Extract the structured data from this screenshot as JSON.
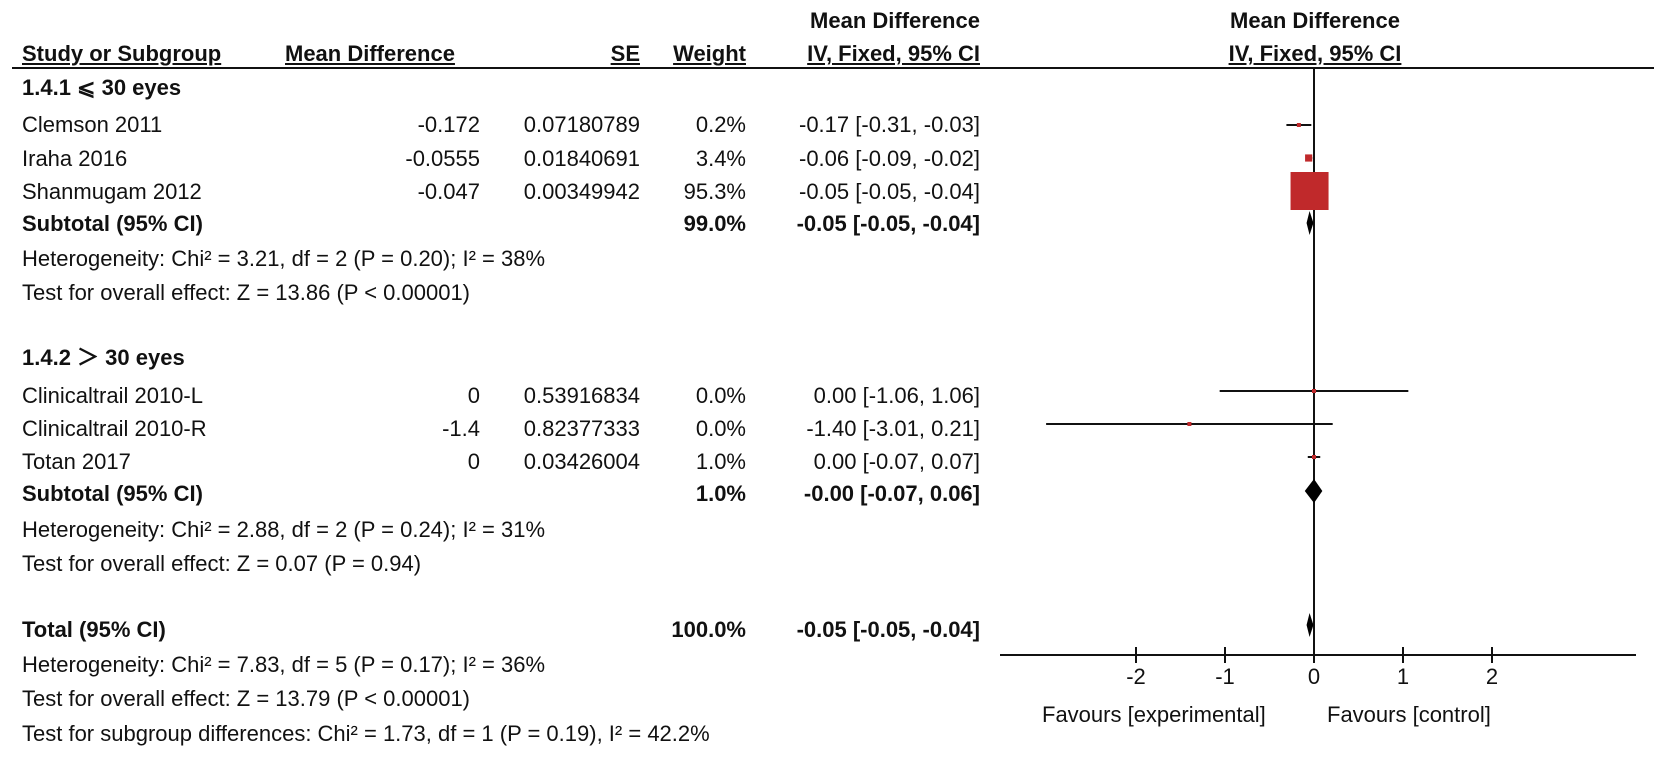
{
  "header": {
    "study": "Study or Subgroup",
    "md": "Mean Difference",
    "se": "SE",
    "weight": "Weight",
    "ci_line1": "Mean Difference",
    "ci_line2": "IV, Fixed, 95% CI",
    "plot_line1": "Mean Difference",
    "plot_line2": "IV, Fixed, 95% CI"
  },
  "groups": [
    {
      "title": "1.4.1 ⩽ 30 eyes",
      "studies": [
        {
          "name": "Clemson 2011",
          "md": "-0.172",
          "se": "0.07180789",
          "weight": "0.2%",
          "ci": "-0.17 [-0.31, -0.03]"
        },
        {
          "name": "Iraha 2016",
          "md": "-0.0555",
          "se": "0.01840691",
          "weight": "3.4%",
          "ci": "-0.06 [-0.09, -0.02]"
        },
        {
          "name": "Shanmugam 2012",
          "md": "-0.047",
          "se": "0.00349942",
          "weight": "95.3%",
          "ci": "-0.05 [-0.05, -0.04]"
        }
      ],
      "subtotal": {
        "label": "Subtotal (95% CI)",
        "weight": "99.0%",
        "ci": "-0.05 [-0.05, -0.04]"
      },
      "heterogeneity": "Heterogeneity: Chi² = 3.21, df = 2 (P = 0.20); I² = 38%",
      "overall": "Test for overall effect: Z = 13.86 (P < 0.00001)"
    },
    {
      "title": "1.4.2 ＞ 30 eyes",
      "studies": [
        {
          "name": "Clinicaltrail 2010-L",
          "md": "0",
          "se": "0.53916834",
          "weight": "0.0%",
          "ci": "0.00 [-1.06, 1.06]"
        },
        {
          "name": "Clinicaltrail 2010-R",
          "md": "-1.4",
          "se": "0.82377333",
          "weight": "0.0%",
          "ci": "-1.40 [-3.01, 0.21]"
        },
        {
          "name": "Totan 2017",
          "md": "0",
          "se": "0.03426004",
          "weight": "1.0%",
          "ci": "0.00 [-0.07, 0.07]"
        }
      ],
      "subtotal": {
        "label": "Subtotal (95% CI)",
        "weight": "1.0%",
        "ci": "-0.00 [-0.07, 0.06]"
      },
      "heterogeneity": "Heterogeneity: Chi² = 2.88, df = 2 (P = 0.24); I² = 31%",
      "overall": "Test for overall effect: Z = 0.07 (P = 0.94)"
    }
  ],
  "total": {
    "label": "Total (95% CI)",
    "weight": "100.0%",
    "ci": "-0.05 [-0.05, -0.04]",
    "heterogeneity": "Heterogeneity: Chi² = 7.83, df = 5 (P = 0.17); I² = 36%",
    "overall": "Test for overall effect: Z = 13.79 (P < 0.00001)",
    "subgroup": "Test for subgroup differences: Chi² = 1.73, df = 1 (P = 0.19), I² = 42.2%"
  },
  "footer": {
    "favours_left": "Favours [experimental]",
    "favours_right": "Favours [control]"
  },
  "colors": {
    "study_marker": "#c0292b",
    "diamond": "#000000",
    "line": "#111111"
  },
  "chart_data": {
    "type": "forest",
    "xlim": [
      -3.5,
      3.5
    ],
    "ticks": [
      -2,
      -1,
      0,
      1,
      2
    ],
    "tick_labels": [
      "-2",
      "-1",
      "0",
      "1",
      "2"
    ],
    "studies": [
      {
        "name": "Clemson 2011",
        "md": -0.17,
        "lo": -0.31,
        "hi": -0.03,
        "weight": 0.2
      },
      {
        "name": "Iraha 2016",
        "md": -0.06,
        "lo": -0.09,
        "hi": -0.02,
        "weight": 3.4
      },
      {
        "name": "Shanmugam 2012",
        "md": -0.05,
        "lo": -0.05,
        "hi": -0.04,
        "weight": 95.3
      },
      {
        "name": "Clinicaltrail 2010-L",
        "md": 0.0,
        "lo": -1.06,
        "hi": 1.06,
        "weight": 0.0
      },
      {
        "name": "Clinicaltrail 2010-R",
        "md": -1.4,
        "lo": -3.01,
        "hi": 0.21,
        "weight": 0.0
      },
      {
        "name": "Totan 2017",
        "md": 0.0,
        "lo": -0.07,
        "hi": 0.07,
        "weight": 1.0
      }
    ],
    "summaries": [
      {
        "name": "Subtotal 1.4.1",
        "md": -0.05,
        "lo": -0.05,
        "hi": -0.04
      },
      {
        "name": "Subtotal 1.4.2",
        "md": -0.0,
        "lo": -0.07,
        "hi": 0.06
      },
      {
        "name": "Total",
        "md": -0.05,
        "lo": -0.05,
        "hi": -0.04
      }
    ]
  }
}
